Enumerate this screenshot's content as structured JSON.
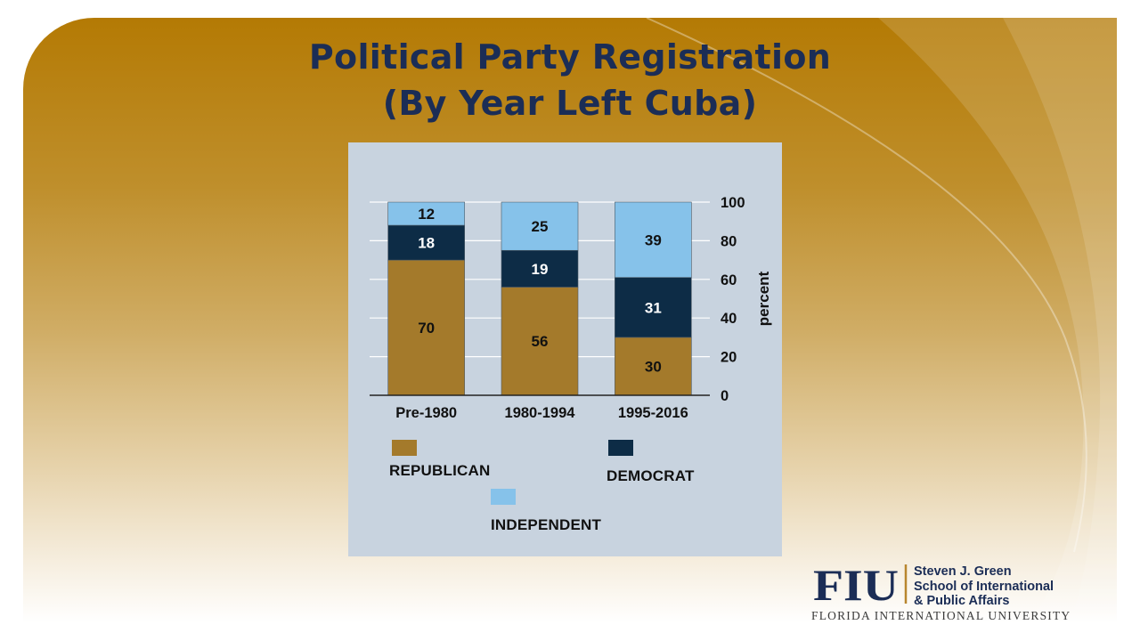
{
  "slide": {
    "title_line1": "Political Party Registration",
    "title_line2": "(By Year Left Cuba)"
  },
  "colors": {
    "republican": "#a47a2b",
    "democrat": "#0d2c46",
    "independent": "#86c2ea",
    "panel": "#c8d3df",
    "title": "#1b2d56"
  },
  "chart_data": {
    "type": "bar",
    "stacked": true,
    "title": "Political Party Registration (By Year Left Cuba)",
    "categories": [
      "Pre-1980",
      "1980-1994",
      "1995-2016"
    ],
    "series": [
      {
        "name": "REPUBLICAN",
        "values": [
          70,
          56,
          30
        ],
        "color": "#a47a2b"
      },
      {
        "name": "DEMOCRAT",
        "values": [
          18,
          19,
          31
        ],
        "color": "#0d2c46"
      },
      {
        "name": "INDEPENDENT",
        "values": [
          12,
          25,
          39
        ],
        "color": "#86c2ea"
      }
    ],
    "ylabel": "percent",
    "xlabel": "",
    "ylim": [
      0,
      100
    ],
    "yticks": [
      0,
      20,
      40,
      60,
      80,
      100
    ],
    "y_axis_side": "right",
    "grid": true,
    "legend_position": "bottom"
  },
  "logo": {
    "mark": "FIU",
    "school_line1": "Steven J. Green",
    "school_line2": "School of International",
    "school_line3": "& Public Affairs",
    "university": "FLORIDA INTERNATIONAL UNIVERSITY"
  }
}
